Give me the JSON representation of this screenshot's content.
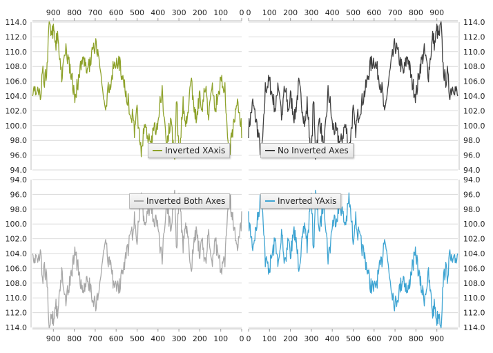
{
  "chart_data": [
    {
      "type": "line",
      "legend": "Inverted XAxis",
      "color": "#8ea22b",
      "x_inverted": true,
      "y_inverted": false,
      "xlim": [
        0,
        1000
      ],
      "ylim": [
        94,
        114
      ],
      "x_ticks": [
        "0",
        "100",
        "200",
        "300",
        "400",
        "500",
        "600",
        "700",
        "800",
        "900"
      ],
      "y_ticks": [
        "94.0",
        "96.0",
        "98.0",
        "100.0",
        "102.0",
        "104.0",
        "106.0",
        "108.0",
        "110.0",
        "112.0",
        "114.0"
      ],
      "x_axis_position": "top",
      "y_axis_position": "left",
      "legend_position": "bottom-right",
      "grid": true
    },
    {
      "type": "line",
      "legend": "No Inverted Axes",
      "color": "#404040",
      "x_inverted": false,
      "y_inverted": false,
      "xlim": [
        0,
        1000
      ],
      "ylim": [
        94,
        114
      ],
      "x_ticks": [
        "0",
        "100",
        "200",
        "300",
        "400",
        "500",
        "600",
        "700",
        "800",
        "900"
      ],
      "y_ticks": [
        "94.0",
        "96.0",
        "98.0",
        "100.0",
        "102.0",
        "104.0",
        "106.0",
        "108.0",
        "110.0",
        "112.0",
        "114.0"
      ],
      "x_axis_position": "top",
      "y_axis_position": "right",
      "legend_position": "bottom-left",
      "grid": true
    },
    {
      "type": "line",
      "legend": "Inverted Both Axes",
      "color": "#a8a8a8",
      "x_inverted": true,
      "y_inverted": true,
      "xlim": [
        0,
        1000
      ],
      "ylim": [
        94,
        114
      ],
      "x_ticks": [
        "0",
        "100",
        "200",
        "300",
        "400",
        "500",
        "600",
        "700",
        "800",
        "900"
      ],
      "y_ticks": [
        "94.0",
        "96.0",
        "98.0",
        "100.0",
        "102.0",
        "104.0",
        "106.0",
        "108.0",
        "110.0",
        "112.0",
        "114.0"
      ],
      "x_axis_position": "bottom",
      "y_axis_position": "left",
      "legend_position": "top-right",
      "grid": true
    },
    {
      "type": "line",
      "legend": "Inverted YAxis",
      "color": "#3ea4d2",
      "x_inverted": false,
      "y_inverted": true,
      "xlim": [
        0,
        1000
      ],
      "ylim": [
        94,
        114
      ],
      "x_ticks": [
        "0",
        "100",
        "200",
        "300",
        "400",
        "500",
        "600",
        "700",
        "800",
        "900"
      ],
      "y_ticks": [
        "94.0",
        "96.0",
        "98.0",
        "100.0",
        "102.0",
        "104.0",
        "106.0",
        "108.0",
        "110.0",
        "112.0",
        "114.0"
      ],
      "x_axis_position": "bottom",
      "y_axis_position": "right",
      "legend_position": "top-left",
      "grid": true
    }
  ],
  "series_anchors": {
    "x": [
      0,
      20,
      40,
      60,
      70,
      80,
      100,
      110,
      130,
      140,
      150,
      160,
      170,
      180,
      190,
      200,
      220,
      240,
      260,
      270,
      280,
      300,
      310,
      320,
      340,
      360,
      380,
      390,
      400,
      420,
      440,
      460,
      470,
      480,
      500,
      510,
      520,
      540,
      560,
      580,
      600,
      620,
      640,
      650,
      660,
      680,
      700,
      720,
      740,
      760,
      780,
      800,
      820,
      840,
      860,
      880,
      890,
      900,
      910,
      920,
      930,
      940,
      950,
      960,
      980,
      1000
    ],
    "y": [
      99.5,
      103,
      100,
      96,
      99,
      105,
      106,
      104.5,
      102,
      106,
      104,
      100.5,
      105,
      104,
      102,
      104,
      101,
      105.5,
      102,
      100,
      103,
      95.5,
      104,
      96,
      101,
      96.5,
      104.5,
      103,
      100,
      99,
      97.5,
      100,
      99,
      96.5,
      102,
      99,
      101,
      103,
      105,
      108,
      109,
      107,
      104.5,
      101,
      104,
      108,
      111,
      109,
      107,
      109.5,
      106,
      104,
      108,
      110,
      107,
      112,
      111,
      113,
      112,
      113.5,
      108,
      106,
      107,
      104.5,
      105.5,
      104
    ]
  }
}
